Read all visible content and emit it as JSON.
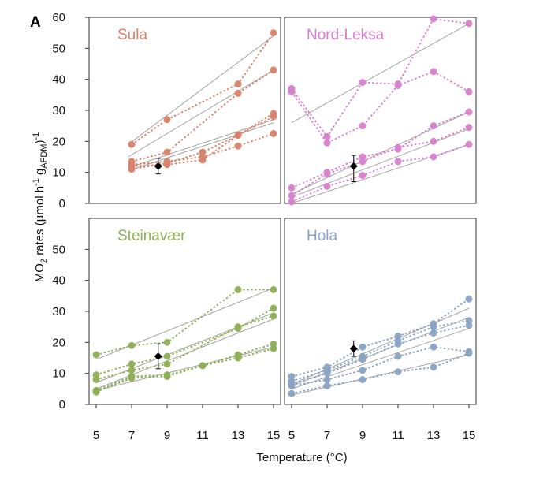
{
  "figure_letter": "A",
  "x_axis_title": "Temperature (°C)",
  "y_axis_title": {
    "base": "MO",
    "sub1": "2",
    "mid": " rates (µmol h",
    "sup1": "-1",
    "mid2": " g",
    "sub2": "AFDM",
    "end": ")",
    "sup2": "-1"
  },
  "colors": {
    "Sula": "#d9826a",
    "Nord-Leksa": "#d77fcd",
    "Steinavær": "#8daf55",
    "Hola": "#8aa3c4",
    "regression": "#9a9a9a",
    "mean_marker": "#000000"
  },
  "chart_data": [
    {
      "type": "scatter",
      "panel": "Sula",
      "title": "Sula",
      "xlim": [
        4.6,
        15.4
      ],
      "ylim": [
        0,
        60
      ],
      "x_ticks": [
        5,
        7,
        9,
        11,
        13,
        15
      ],
      "y_ticks": [
        0,
        10,
        20,
        30,
        40,
        50,
        60
      ],
      "series": [
        {
          "x": [
            7,
            9,
            13,
            15
          ],
          "y": [
            19,
            27,
            38.5,
            55
          ]
        },
        {
          "x": [
            7,
            9,
            13,
            15
          ],
          "y": [
            13.5,
            16.5,
            35.5,
            43
          ]
        },
        {
          "x": [
            7,
            9,
            11,
            13,
            15
          ],
          "y": [
            12,
            12.5,
            14,
            22,
            29
          ]
        },
        {
          "x": [
            7,
            9,
            11,
            13,
            15
          ],
          "y": [
            11,
            13,
            16.5,
            22,
            28
          ]
        },
        {
          "x": [
            7,
            9,
            11,
            13,
            15
          ],
          "y": [
            12.5,
            13.5,
            15,
            18.5,
            22.5
          ]
        }
      ],
      "regressions": [
        [
          6.8,
          19,
          15,
          54
        ],
        [
          6.8,
          15,
          15,
          43
        ],
        [
          6.8,
          11.5,
          15,
          27
        ],
        [
          6.8,
          10.5,
          15,
          26
        ]
      ],
      "mean": {
        "x": 8.5,
        "y": 12,
        "err_lo": 9.5,
        "err_hi": 14.5
      }
    },
    {
      "type": "scatter",
      "panel": "Nord-Leksa",
      "title": "Nord-Leksa",
      "xlim": [
        4.6,
        15.4
      ],
      "ylim": [
        0,
        60
      ],
      "x_ticks": [
        5,
        7,
        9,
        11,
        13,
        15
      ],
      "y_ticks": [
        0,
        10,
        20,
        30,
        40,
        50,
        60
      ],
      "series": [
        {
          "x": [
            5,
            7,
            9,
            11,
            13,
            15
          ],
          "y": [
            37,
            21.5,
            39,
            38.5,
            59.5,
            58
          ]
        },
        {
          "x": [
            5,
            7,
            9,
            11,
            13,
            15
          ],
          "y": [
            36,
            19.5,
            25,
            38,
            42.5,
            36
          ]
        },
        {
          "x": [
            5,
            7,
            9,
            11,
            13,
            15
          ],
          "y": [
            5,
            10,
            15,
            17.5,
            25,
            29.5
          ]
        },
        {
          "x": [
            5,
            7,
            9,
            11,
            13,
            15
          ],
          "y": [
            2.5,
            9.5,
            13.5,
            18,
            20,
            24.5
          ]
        },
        {
          "x": [
            5,
            7,
            9,
            11,
            13,
            15
          ],
          "y": [
            0.5,
            5.5,
            9,
            13.5,
            15,
            19
          ]
        }
      ],
      "regressions": [
        [
          5,
          26,
          15,
          58
        ],
        [
          5,
          3,
          15,
          29.5
        ],
        [
          5,
          2,
          15,
          24
        ],
        [
          5,
          0,
          15,
          19
        ]
      ],
      "mean": {
        "x": 8.5,
        "y": 12,
        "err_lo": 7,
        "err_hi": 15.5
      }
    },
    {
      "type": "scatter",
      "panel": "Steinavær",
      "title": "Steinavær",
      "xlim": [
        4.6,
        15.4
      ],
      "ylim": [
        0,
        60
      ],
      "x_ticks": [
        5,
        7,
        9,
        11,
        13,
        15
      ],
      "y_ticks": [
        0,
        10,
        20,
        30,
        40,
        50
      ],
      "series": [
        {
          "x": [
            5,
            7,
            9,
            13,
            15
          ],
          "y": [
            16,
            19,
            20,
            37,
            37
          ]
        },
        {
          "x": [
            5,
            7,
            9,
            13,
            15
          ],
          "y": [
            9.5,
            13,
            15.5,
            24.5,
            31
          ]
        },
        {
          "x": [
            5,
            7,
            9,
            13,
            15
          ],
          "y": [
            8,
            11,
            13,
            25,
            28.5
          ]
        },
        {
          "x": [
            5,
            7,
            9,
            11,
            13,
            15
          ],
          "y": [
            4.5,
            9,
            9.5,
            12.5,
            16,
            19.5
          ]
        },
        {
          "x": [
            5,
            7,
            9,
            11,
            13,
            15
          ],
          "y": [
            4,
            8.5,
            9,
            12.5,
            15,
            18
          ]
        }
      ],
      "regressions": [
        [
          5,
          14.5,
          15,
          37.5
        ],
        [
          5,
          7,
          15,
          29.5
        ],
        [
          5,
          5,
          15,
          27.5
        ],
        [
          5,
          4.5,
          15,
          18.5
        ]
      ],
      "mean": {
        "x": 8.5,
        "y": 15.5,
        "err_lo": 11.5,
        "err_hi": 19.5
      }
    },
    {
      "type": "scatter",
      "panel": "Hola",
      "title": "Hola",
      "xlim": [
        4.6,
        15.4
      ],
      "ylim": [
        0,
        60
      ],
      "x_ticks": [
        5,
        7,
        9,
        11,
        13,
        15
      ],
      "y_ticks": [
        0,
        10,
        20,
        30,
        40,
        50
      ],
      "series": [
        {
          "x": [
            5,
            7,
            9,
            11,
            13,
            15
          ],
          "y": [
            9,
            12,
            18.5,
            22,
            26,
            34
          ]
        },
        {
          "x": [
            5,
            7,
            9,
            11,
            13,
            15
          ],
          "y": [
            7.5,
            11,
            15.5,
            20.5,
            25,
            27
          ]
        },
        {
          "x": [
            5,
            7,
            9,
            11,
            13,
            15
          ],
          "y": [
            6.5,
            10,
            14.5,
            19.5,
            23,
            25.5
          ]
        },
        {
          "x": [
            5,
            7,
            9,
            11,
            13,
            15
          ],
          "y": [
            6,
            8,
            11,
            15.5,
            18.5,
            17
          ]
        },
        {
          "x": [
            5,
            7,
            9,
            11,
            13,
            15
          ],
          "y": [
            3.5,
            6,
            8,
            10.5,
            12,
            16.5
          ]
        }
      ],
      "regressions": [
        [
          5,
          6.5,
          15,
          31
        ],
        [
          5,
          6,
          15,
          28
        ],
        [
          5,
          5,
          15,
          24.5
        ],
        [
          5,
          3,
          15,
          16
        ]
      ],
      "mean": {
        "x": 8.5,
        "y": 18,
        "err_lo": 15.5,
        "err_hi": 20.5
      }
    }
  ]
}
